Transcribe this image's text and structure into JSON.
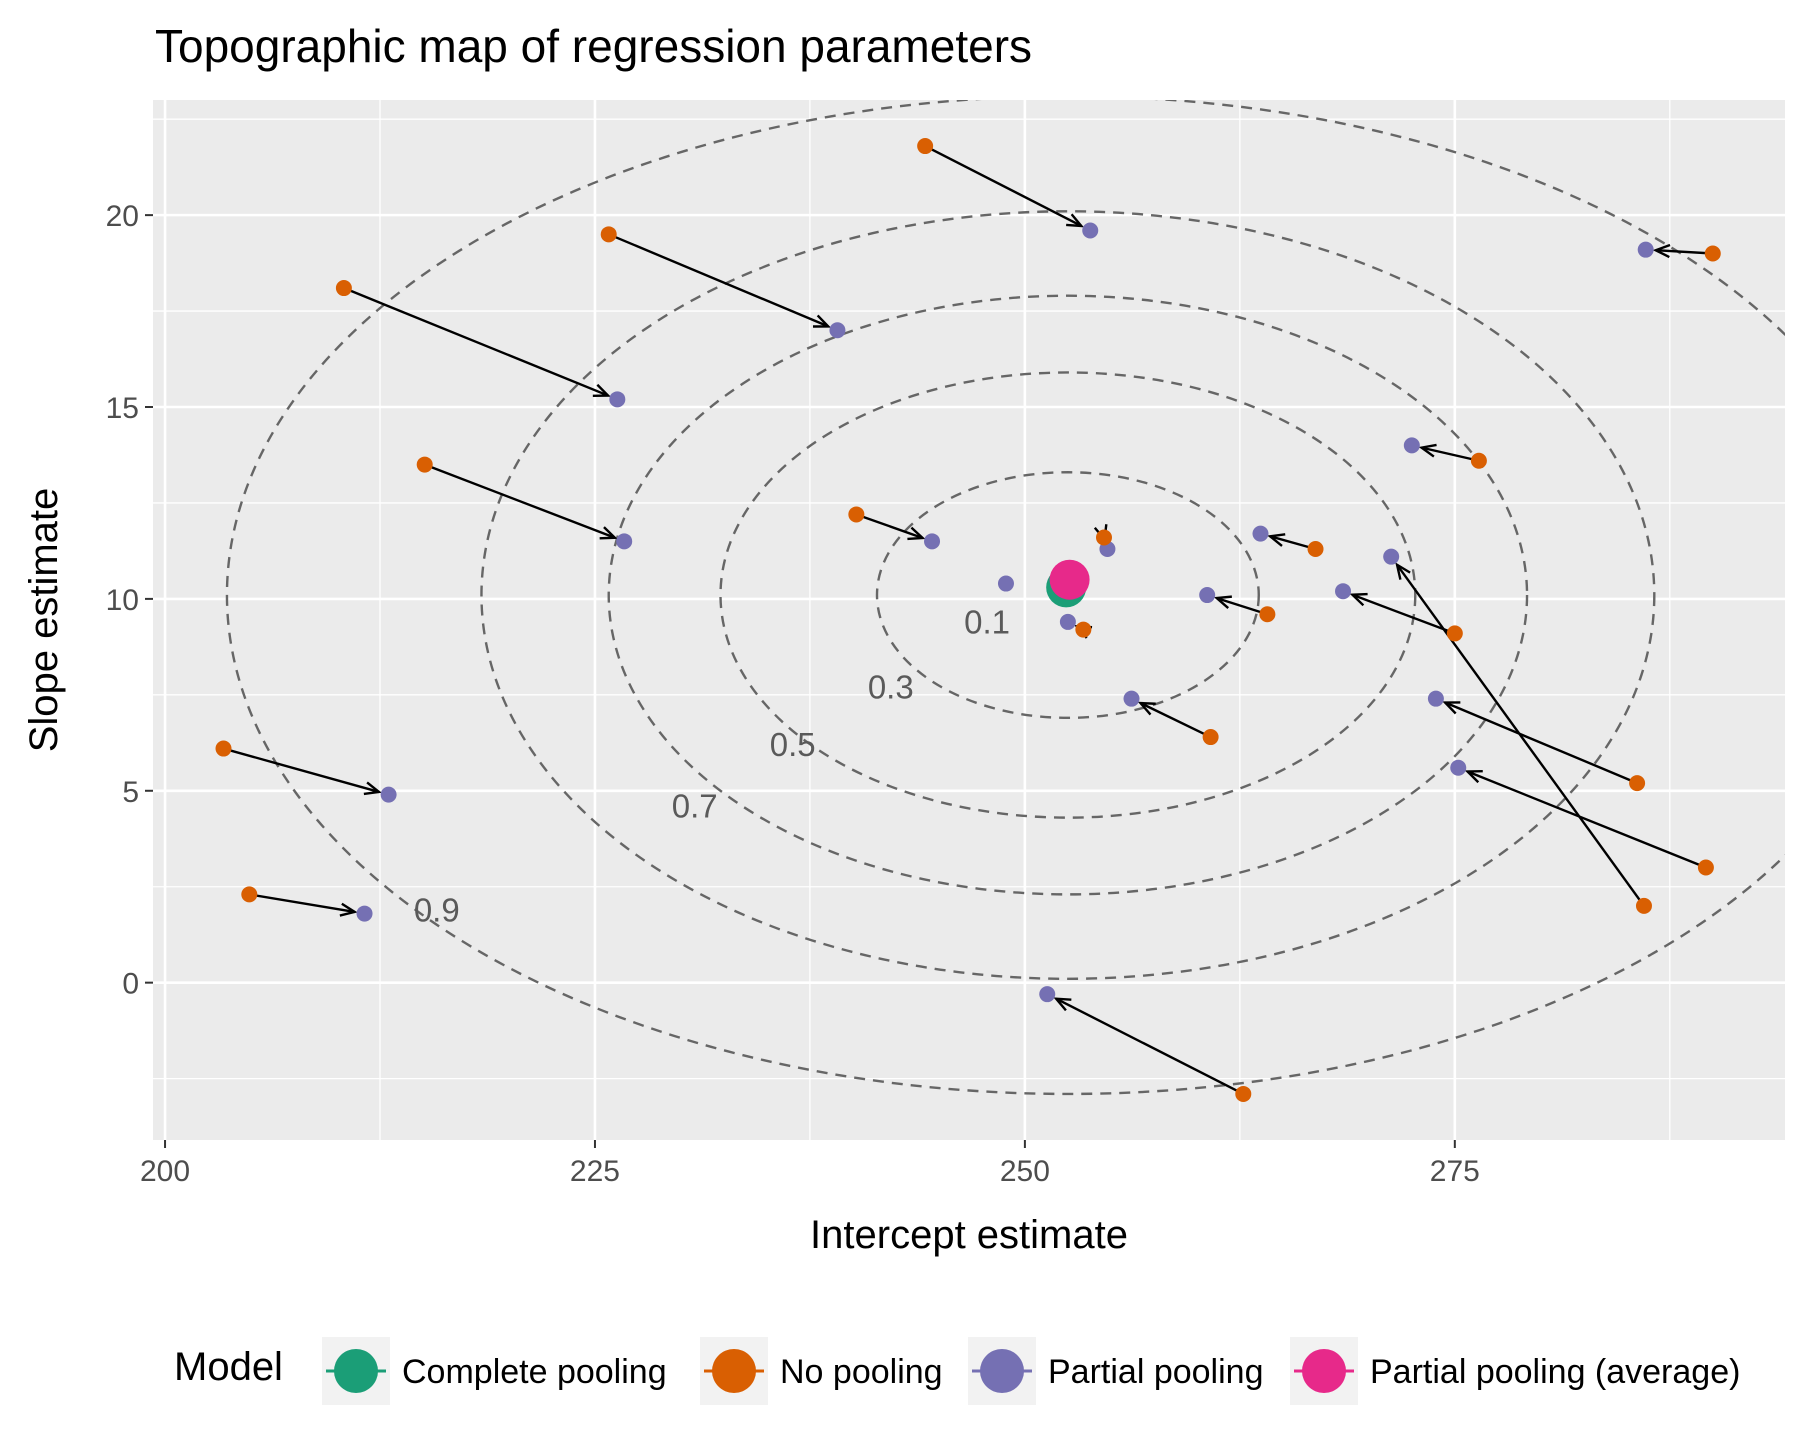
{
  "chart_data": {
    "type": "scatter",
    "title": "Topographic map of regression parameters",
    "xlabel": "Intercept estimate",
    "ylabel": "Slope estimate",
    "xlim": [
      199.3,
      294.2
    ],
    "ylim": [
      -4.1,
      23.0
    ],
    "x_ticks": [
      200,
      225,
      250,
      275
    ],
    "y_ticks": [
      0,
      5,
      10,
      15,
      20
    ],
    "grid": true,
    "legend": {
      "title": "Model",
      "position": "bottom",
      "entries": [
        {
          "key": "complete",
          "label": "Complete pooling",
          "color": "#1b9e77"
        },
        {
          "key": "none",
          "label": "No pooling",
          "color": "#d95f02"
        },
        {
          "key": "partial",
          "label": "Partial pooling",
          "color": "#7570b3"
        },
        {
          "key": "average",
          "label": "Partial pooling (average)",
          "color": "#e7298a"
        }
      ]
    },
    "contours": [
      {
        "level": "0.1",
        "cx": 252.5,
        "cy": 10.1,
        "rx": 11.1,
        "ry": 3.2,
        "label_x": 247.8,
        "label_y": 9.1
      },
      {
        "level": "0.3",
        "cx": 252.5,
        "cy": 10.1,
        "rx": 20.2,
        "ry": 5.8,
        "label_x": 242.2,
        "label_y": 7.4
      },
      {
        "level": "0.5",
        "cx": 252.5,
        "cy": 10.1,
        "rx": 26.7,
        "ry": 7.8,
        "label_x": 236.5,
        "label_y": 5.9
      },
      {
        "level": "0.7",
        "cx": 252.5,
        "cy": 10.1,
        "rx": 34.1,
        "ry": 10.0,
        "label_x": 230.8,
        "label_y": 4.3
      },
      {
        "level": "0.9",
        "cx": 252.5,
        "cy": 10.1,
        "rx": 48.9,
        "ry": 13.0,
        "label_x": 215.8,
        "label_y": 1.6
      }
    ],
    "pairs": [
      {
        "no_pooling": [
          244.2,
          21.8
        ],
        "partial_pooling": [
          253.8,
          19.6
        ]
      },
      {
        "no_pooling": [
          225.8,
          19.5
        ],
        "partial_pooling": [
          239.1,
          17.0
        ]
      },
      {
        "no_pooling": [
          210.4,
          18.1
        ],
        "partial_pooling": [
          226.3,
          15.2
        ]
      },
      {
        "no_pooling": [
          215.1,
          13.5
        ],
        "partial_pooling": [
          226.7,
          11.5
        ]
      },
      {
        "no_pooling": [
          240.2,
          12.2
        ],
        "partial_pooling": [
          244.6,
          11.5
        ]
      },
      {
        "no_pooling": [
          254.6,
          11.6
        ],
        "partial_pooling": [
          254.8,
          11.3
        ]
      },
      {
        "no_pooling": [
          253.4,
          9.2
        ],
        "partial_pooling": [
          252.5,
          9.4
        ]
      },
      {
        "no_pooling": [
          264.1,
          9.6
        ],
        "partial_pooling": [
          260.6,
          10.1
        ]
      },
      {
        "no_pooling": [
          266.9,
          11.3
        ],
        "partial_pooling": [
          263.7,
          11.7
        ]
      },
      {
        "no_pooling": [
          275.0,
          9.1
        ],
        "partial_pooling": [
          268.5,
          10.2
        ]
      },
      {
        "no_pooling": [
          260.8,
          6.4
        ],
        "partial_pooling": [
          256.2,
          7.4
        ]
      },
      {
        "no_pooling": [
          276.4,
          13.6
        ],
        "partial_pooling": [
          272.5,
          14.0
        ]
      },
      {
        "no_pooling": [
          290.0,
          19.0
        ],
        "partial_pooling": [
          286.1,
          19.1
        ]
      },
      {
        "no_pooling": [
          285.6,
          5.2
        ],
        "partial_pooling": [
          273.9,
          7.4
        ]
      },
      {
        "no_pooling": [
          289.6,
          3.0
        ],
        "partial_pooling": [
          275.2,
          5.6
        ]
      },
      {
        "no_pooling": [
          286.0,
          2.0
        ],
        "partial_pooling": [
          271.3,
          11.1
        ]
      },
      {
        "no_pooling": [
          203.4,
          6.1
        ],
        "partial_pooling": [
          213.0,
          4.9
        ]
      },
      {
        "no_pooling": [
          204.9,
          2.3
        ],
        "partial_pooling": [
          211.6,
          1.8
        ]
      },
      {
        "no_pooling": [
          262.7,
          -2.9
        ],
        "partial_pooling": [
          251.3,
          -0.3
        ]
      }
    ],
    "extra_partial_pooling": [
      [
        248.9,
        10.4
      ]
    ],
    "complete_pooling": [
      252.4,
      10.3
    ],
    "partial_pooling_average": [
      252.6,
      10.5
    ]
  }
}
